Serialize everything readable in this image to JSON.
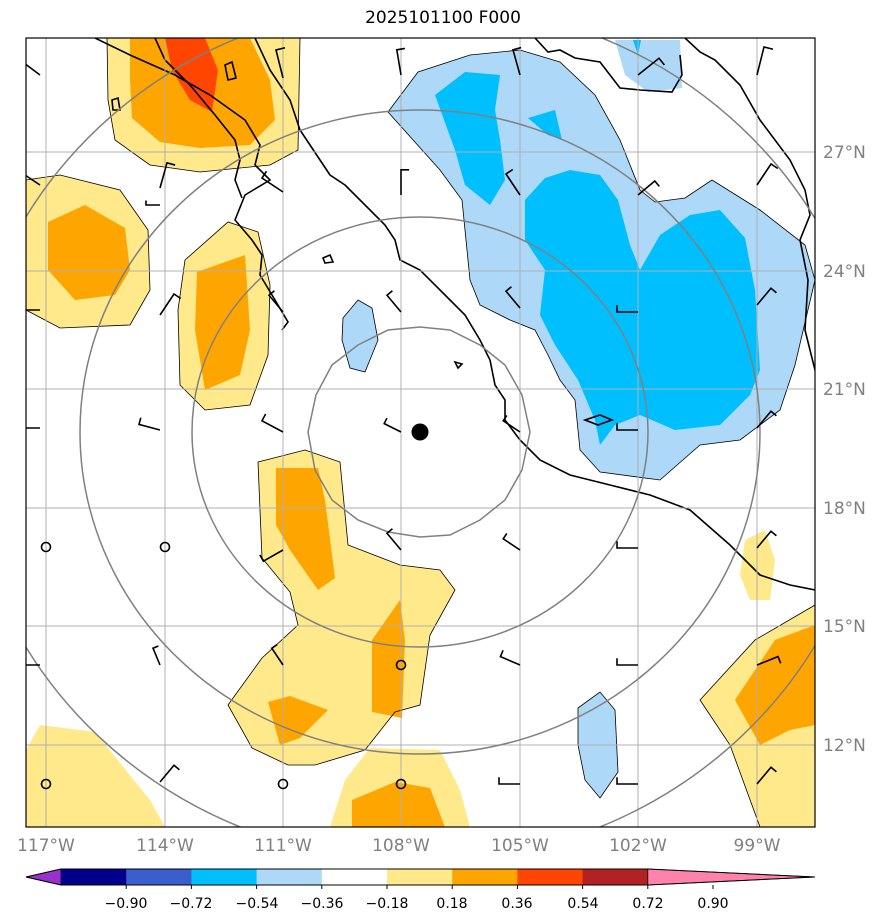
{
  "title": "2025101100 F000",
  "lon_labels": [
    "117°W",
    "114°W",
    "111°W",
    "108°W",
    "105°W",
    "102°W",
    "99°W"
  ],
  "lat_labels": [
    "27°N",
    "24°N",
    "21°N",
    "18°N",
    "15°N",
    "12°N"
  ],
  "colorbar": {
    "ticks": [
      "−0.90",
      "−0.72",
      "−0.54",
      "−0.36",
      "−0.18",
      "0.18",
      "0.36",
      "0.54",
      "0.72",
      "0.90"
    ],
    "colors": [
      "#9932cc",
      "#00008b",
      "#3a5fcd",
      "#00bfff",
      "#add8f7",
      "#ffffff",
      "#ffe98a",
      "#ffa500",
      "#ff4500",
      "#b22222",
      "#ff82ab"
    ]
  },
  "storm_center": {
    "lon": -108.5,
    "lat": 19.9
  },
  "range_rings_km": [
    250,
    500,
    750,
    1000
  ]
}
